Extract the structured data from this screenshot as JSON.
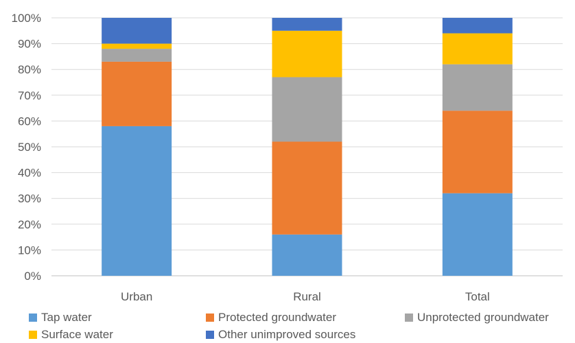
{
  "chart_data": {
    "type": "bar",
    "stacked": true,
    "categories": [
      "Urban",
      "Rural",
      "Total"
    ],
    "series": [
      {
        "name": "Tap water",
        "color": "#5B9BD5",
        "values": [
          58,
          16,
          32
        ]
      },
      {
        "name": "Protected groundwater",
        "color": "#ED7D31",
        "values": [
          25,
          36,
          32
        ]
      },
      {
        "name": "Unprotected groundwater",
        "color": "#A5A5A5",
        "values": [
          5,
          25,
          18
        ]
      },
      {
        "name": "Surface water",
        "color": "#FFC000",
        "values": [
          2,
          18,
          12
        ]
      },
      {
        "name": "Other unimproved sources",
        "color": "#4472C4",
        "values": [
          10,
          5,
          6
        ]
      }
    ],
    "y_ticks": [
      "0%",
      "10%",
      "20%",
      "30%",
      "40%",
      "50%",
      "60%",
      "70%",
      "80%",
      "90%",
      "100%"
    ],
    "ylim": [
      0,
      100
    ],
    "grid": true,
    "legend_position": "bottom",
    "title": "",
    "xlabel": "",
    "ylabel": ""
  }
}
